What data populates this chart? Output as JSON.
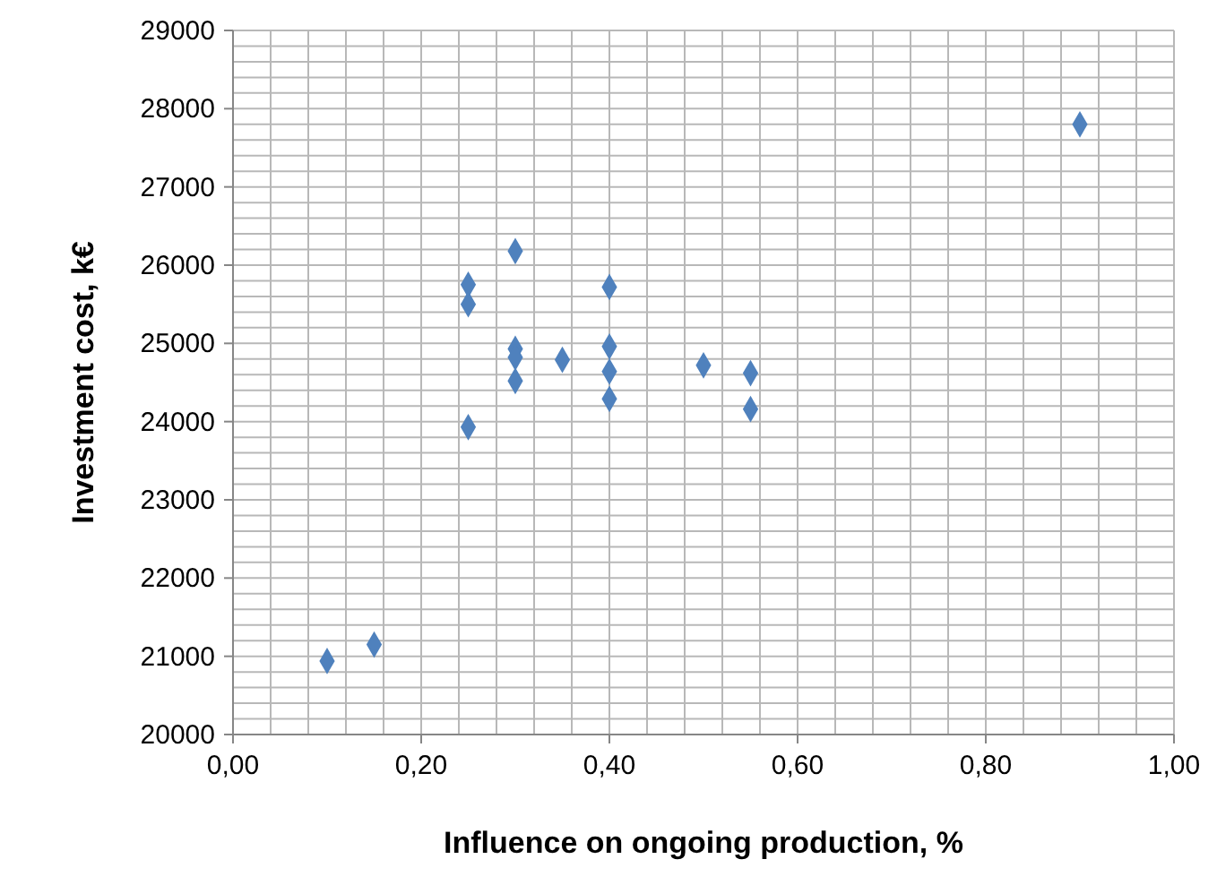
{
  "chart_data": {
    "type": "scatter",
    "xlabel": "Influence on ongoing production, %",
    "ylabel": "Investment cost, k€",
    "x": [
      0.1,
      0.15,
      0.25,
      0.25,
      0.25,
      0.3,
      0.3,
      0.3,
      0.3,
      0.35,
      0.4,
      0.4,
      0.4,
      0.4,
      0.5,
      0.55,
      0.55,
      0.9
    ],
    "series": [
      {
        "color": "#4f81bd",
        "values": [
          20940,
          21150,
          23930,
          25500,
          25750,
          26180,
          24930,
          24820,
          24520,
          24790,
          25720,
          24960,
          24640,
          24290,
          24720,
          24620,
          24160,
          27800
        ]
      }
    ],
    "marker": "diamond",
    "grid": true,
    "xlim": [
      0,
      1
    ],
    "ylim": [
      20000,
      29000
    ],
    "xticks": [
      {
        "value": 0,
        "label": "0,00"
      },
      {
        "value": 0.04,
        "label": null
      },
      {
        "value": 0.08,
        "label": null
      },
      {
        "value": 0.12,
        "label": null
      },
      {
        "value": 0.16,
        "label": null
      },
      {
        "value": 0.2,
        "label": "0,20"
      },
      {
        "value": 0.24,
        "label": null
      },
      {
        "value": 0.28,
        "label": null
      },
      {
        "value": 0.32,
        "label": null
      },
      {
        "value": 0.36,
        "label": null
      },
      {
        "value": 0.4,
        "label": "0,40"
      },
      {
        "value": 0.44,
        "label": null
      },
      {
        "value": 0.48,
        "label": null
      },
      {
        "value": 0.52,
        "label": null
      },
      {
        "value": 0.56,
        "label": null
      },
      {
        "value": 0.6,
        "label": "0,60"
      },
      {
        "value": 0.64,
        "label": null
      },
      {
        "value": 0.68,
        "label": null
      },
      {
        "value": 0.72,
        "label": null
      },
      {
        "value": 0.76,
        "label": null
      },
      {
        "value": 0.8,
        "label": "0,80"
      },
      {
        "value": 0.84,
        "label": null
      },
      {
        "value": 0.88,
        "label": null
      },
      {
        "value": 0.92,
        "label": null
      },
      {
        "value": 0.96,
        "label": null
      },
      {
        "value": 1,
        "label": "1,00"
      }
    ],
    "yticks": [
      20000,
      {
        "value": 20200,
        "label": null
      },
      {
        "value": 20400,
        "label": null
      },
      {
        "value": 20600,
        "label": null
      },
      {
        "value": 20800,
        "label": null
      },
      21000,
      {
        "value": 21200,
        "label": null
      },
      {
        "value": 21400,
        "label": null
      },
      {
        "value": 21600,
        "label": null
      },
      {
        "value": 21800,
        "label": null
      },
      22000,
      {
        "value": 22200,
        "label": null
      },
      {
        "value": 22400,
        "label": null
      },
      {
        "value": 22600,
        "label": null
      },
      {
        "value": 22800,
        "label": null
      },
      23000,
      {
        "value": 23200,
        "label": null
      },
      {
        "value": 23400,
        "label": null
      },
      {
        "value": 23600,
        "label": null
      },
      {
        "value": 23800,
        "label": null
      },
      24000,
      {
        "value": 24200,
        "label": null
      },
      {
        "value": 24400,
        "label": null
      },
      {
        "value": 24600,
        "label": null
      },
      {
        "value": 24800,
        "label": null
      },
      25000,
      {
        "value": 25200,
        "label": null
      },
      {
        "value": 25400,
        "label": null
      },
      {
        "value": 25600,
        "label": null
      },
      {
        "value": 25800,
        "label": null
      },
      26000,
      {
        "value": 26200,
        "label": null
      },
      {
        "value": 26400,
        "label": null
      },
      {
        "value": 26600,
        "label": null
      },
      {
        "value": 26800,
        "label": null
      },
      27000,
      {
        "value": 27200,
        "label": null
      },
      {
        "value": 27400,
        "label": null
      },
      {
        "value": 27600,
        "label": null
      },
      {
        "value": 27800,
        "label": null
      },
      28000,
      {
        "value": 28200,
        "label": null
      },
      {
        "value": 28400,
        "label": null
      },
      {
        "value": 28600,
        "label": null
      },
      {
        "value": 28800,
        "label": null
      },
      29000
    ]
  }
}
